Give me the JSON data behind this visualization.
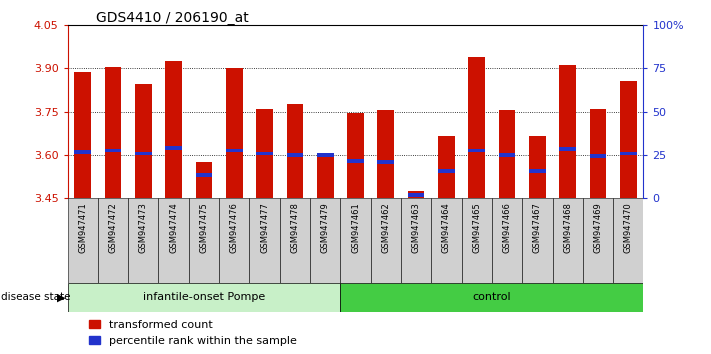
{
  "title": "GDS4410 / 206190_at",
  "samples": [
    "GSM947471",
    "GSM947472",
    "GSM947473",
    "GSM947474",
    "GSM947475",
    "GSM947476",
    "GSM947477",
    "GSM947478",
    "GSM947479",
    "GSM947461",
    "GSM947462",
    "GSM947463",
    "GSM947464",
    "GSM947465",
    "GSM947466",
    "GSM947467",
    "GSM947468",
    "GSM947469",
    "GSM947470"
  ],
  "transformed_count": [
    3.885,
    3.905,
    3.845,
    3.925,
    3.575,
    3.9,
    3.76,
    3.775,
    3.6,
    3.745,
    3.755,
    3.475,
    3.665,
    3.94,
    3.755,
    3.665,
    3.91,
    3.76,
    3.855
  ],
  "percentile_rank": [
    3.61,
    3.615,
    3.605,
    3.625,
    3.53,
    3.615,
    3.605,
    3.6,
    3.6,
    3.58,
    3.575,
    3.46,
    3.545,
    3.615,
    3.6,
    3.545,
    3.62,
    3.595,
    3.605
  ],
  "group_labels": [
    "infantile-onset Pompe",
    "control"
  ],
  "n_pompe": 9,
  "n_control": 10,
  "bar_color": "#cc1100",
  "blue_marker_color": "#2233cc",
  "baseline": 3.45,
  "ylim_left": [
    3.45,
    4.05
  ],
  "yticks_left": [
    3.45,
    3.6,
    3.75,
    3.9,
    4.05
  ],
  "ylim_right": [
    0,
    100
  ],
  "yticks_right": [
    0,
    25,
    50,
    75,
    100
  ],
  "background_color": "#ffffff",
  "bar_width": 0.55,
  "title_color": "#000000",
  "left_axis_color": "#cc1100",
  "right_axis_color": "#2233cc",
  "grid_color": "#000000",
  "legend_items": [
    "transformed count",
    "percentile rank within the sample"
  ],
  "pompe_color": "#c8f0c8",
  "control_color": "#44cc44",
  "gray_box_color": "#d0d0d0"
}
